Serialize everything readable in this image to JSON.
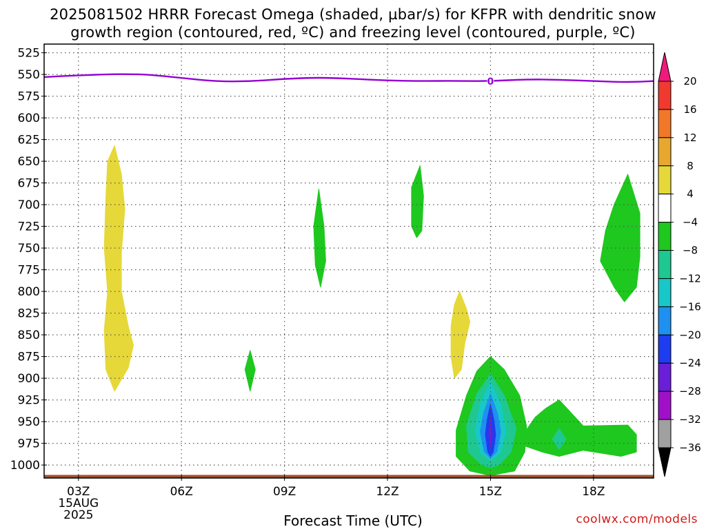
{
  "title": {
    "line1": "2025081502 HRRR Forecast Omega (shaded, µbar/s) for KFPR with dendritic snow",
    "line2": "growth region (contoured, red, ºC) and freezing level (contoured, purple, ºC)"
  },
  "credit": "coolwx.com/models",
  "chart_data": {
    "type": "heatmap",
    "xlabel": "Forecast Time (UTC)",
    "x_ticks": [
      "03Z",
      "06Z",
      "09Z",
      "12Z",
      "15Z",
      "18Z"
    ],
    "x_tick_hours": [
      3,
      6,
      9,
      12,
      15,
      18
    ],
    "x_date_label": [
      "15AUG",
      "2025"
    ],
    "x_range_hours": [
      2,
      19.75
    ],
    "y_ticks": [
      525,
      550,
      575,
      600,
      625,
      650,
      675,
      700,
      725,
      750,
      775,
      800,
      825,
      850,
      875,
      900,
      925,
      950,
      975,
      1000
    ],
    "y_range_hPa": [
      515,
      1015
    ],
    "grid": true,
    "colorbar": {
      "labels": [
        "20",
        "16",
        "12",
        "8",
        "4",
        "−4",
        "−8",
        "−12",
        "−16",
        "−20",
        "−24",
        "−28",
        "−32",
        "−36"
      ],
      "colors": [
        "#f01a7c",
        "#f03a30",
        "#f07828",
        "#e8a830",
        "#e6d838",
        "#ffffff",
        "#1ec81e",
        "#1ec890",
        "#18c8c8",
        "#1e90f0",
        "#1e3cf0",
        "#6a1ed8",
        "#a010c8",
        "#a0a0a0",
        "#000000"
      ]
    },
    "freezing_level": {
      "label": "0",
      "color": "#9400d3",
      "hours": [
        2,
        3,
        4,
        4.5,
        5,
        6,
        7,
        8,
        9,
        10,
        11,
        12,
        13,
        14,
        15,
        16,
        17,
        18,
        19,
        19.75
      ],
      "pressure_hPa": [
        553,
        551,
        549.6,
        549.7,
        550,
        554,
        558,
        558,
        555,
        553.5,
        555,
        557,
        557.6,
        557.4,
        557.8,
        555.6,
        556,
        557.6,
        559,
        557.6
      ]
    },
    "omega_regions": [
      {
        "value_range": "4 to 8",
        "color": "#e6d838",
        "shape": [
          [
            4.05,
            632
          ],
          [
            4.25,
            665
          ],
          [
            4.35,
            705
          ],
          [
            4.25,
            755
          ],
          [
            4.25,
            800
          ],
          [
            4.45,
            840
          ],
          [
            4.6,
            862
          ],
          [
            4.45,
            888
          ],
          [
            4.05,
            915
          ],
          [
            3.8,
            890
          ],
          [
            3.75,
            845
          ],
          [
            3.85,
            800
          ],
          [
            3.75,
            750
          ],
          [
            3.8,
            690
          ],
          [
            3.85,
            650
          ]
        ]
      },
      {
        "value_range": "4 to 8",
        "color": "#e6d838",
        "shape": [
          [
            14.1,
            800
          ],
          [
            14.3,
            820
          ],
          [
            14.4,
            835
          ],
          [
            14.25,
            860
          ],
          [
            14.15,
            890
          ],
          [
            13.95,
            900
          ],
          [
            13.85,
            875
          ],
          [
            13.85,
            840
          ],
          [
            13.95,
            815
          ]
        ]
      },
      {
        "value_range": "-4 to -8",
        "color": "#1ec81e",
        "shape": [
          [
            8,
            868
          ],
          [
            8.15,
            890
          ],
          [
            8,
            915
          ],
          [
            7.85,
            890
          ]
        ]
      },
      {
        "value_range": "-4 to -8",
        "color": "#1ec81e",
        "shape": [
          [
            10,
            682
          ],
          [
            10.15,
            725
          ],
          [
            10.2,
            765
          ],
          [
            10.05,
            795
          ],
          [
            9.9,
            770
          ],
          [
            9.85,
            725
          ]
        ]
      },
      {
        "value_range": "-4 to -8",
        "color": "#1ec81e",
        "shape": [
          [
            12.95,
            655
          ],
          [
            13.05,
            690
          ],
          [
            13,
            730
          ],
          [
            12.85,
            738
          ],
          [
            12.7,
            725
          ],
          [
            12.7,
            680
          ]
        ]
      },
      {
        "value_range": "-4 to -8",
        "color": "#1ec81e",
        "shape": [
          [
            19,
            665
          ],
          [
            19.35,
            710
          ],
          [
            19.35,
            760
          ],
          [
            19.25,
            795
          ],
          [
            18.9,
            812
          ],
          [
            18.6,
            795
          ],
          [
            18.2,
            765
          ],
          [
            18.35,
            730
          ],
          [
            18.6,
            700
          ]
        ]
      },
      {
        "value_range": "-4 to -8",
        "color": "#1ec81e",
        "shape": [
          [
            15,
            875
          ],
          [
            15.4,
            890
          ],
          [
            15.85,
            920
          ],
          [
            16.05,
            955
          ],
          [
            16.0,
            985
          ],
          [
            15.7,
            1007
          ],
          [
            15.0,
            1012
          ],
          [
            14.4,
            1007
          ],
          [
            14.0,
            990
          ],
          [
            14.0,
            960
          ],
          [
            14.3,
            920
          ],
          [
            14.6,
            892
          ]
        ]
      },
      {
        "value_range": "-4 to -8",
        "color": "#1ec81e",
        "shape": [
          [
            17,
            925
          ],
          [
            17.35,
            940
          ],
          [
            17.7,
            955
          ],
          [
            19,
            954
          ],
          [
            19.25,
            965
          ],
          [
            19.25,
            985
          ],
          [
            18.8,
            990
          ],
          [
            17.7,
            983
          ],
          [
            17,
            990
          ],
          [
            16.5,
            985
          ],
          [
            16.0,
            978
          ],
          [
            16.0,
            962
          ],
          [
            16.3,
            945
          ],
          [
            16.6,
            935
          ]
        ]
      },
      {
        "value_range": "-8 to -12",
        "color": "#1ec890",
        "shape": [
          [
            15,
            895
          ],
          [
            15.4,
            920
          ],
          [
            15.75,
            958
          ],
          [
            15.6,
            985
          ],
          [
            15.25,
            1000
          ],
          [
            15.0,
            1003
          ],
          [
            14.75,
            1000
          ],
          [
            14.35,
            985
          ],
          [
            14.3,
            955
          ],
          [
            14.6,
            918
          ]
        ]
      },
      {
        "value_range": "-8 to -12",
        "color": "#1ec890",
        "shape": [
          [
            17,
            958
          ],
          [
            17.2,
            970
          ],
          [
            17,
            982
          ],
          [
            16.8,
            970
          ]
        ]
      },
      {
        "value_range": "-12 to -16",
        "color": "#18c8c8",
        "shape": [
          [
            15,
            905
          ],
          [
            15.3,
            930
          ],
          [
            15.45,
            960
          ],
          [
            15.3,
            985
          ],
          [
            15,
            995
          ],
          [
            14.7,
            985
          ],
          [
            14.55,
            960
          ],
          [
            14.7,
            930
          ]
        ]
      },
      {
        "value_range": "-16 to -20",
        "color": "#1e90f0",
        "shape": [
          [
            15,
            918
          ],
          [
            15.2,
            940
          ],
          [
            15.3,
            962
          ],
          [
            15.18,
            985
          ],
          [
            15,
            992
          ],
          [
            14.82,
            985
          ],
          [
            14.7,
            962
          ],
          [
            14.8,
            940
          ]
        ]
      },
      {
        "value_range": "-20 to -24",
        "color": "#1e3cf0",
        "shape": [
          [
            15,
            930
          ],
          [
            15.1,
            948
          ],
          [
            15.15,
            965
          ],
          [
            15.08,
            985
          ],
          [
            15,
            990
          ],
          [
            14.92,
            985
          ],
          [
            14.85,
            965
          ],
          [
            14.9,
            948
          ]
        ]
      },
      {
        "value_range": "-24 to -28",
        "color": "#6a1ed8",
        "shape": [
          [
            15,
            945
          ],
          [
            15.05,
            965
          ],
          [
            15,
            980
          ],
          [
            14.95,
            965
          ]
        ]
      }
    ],
    "surface": {
      "color": "#a0522d",
      "pressure_hPa": 1013
    }
  }
}
